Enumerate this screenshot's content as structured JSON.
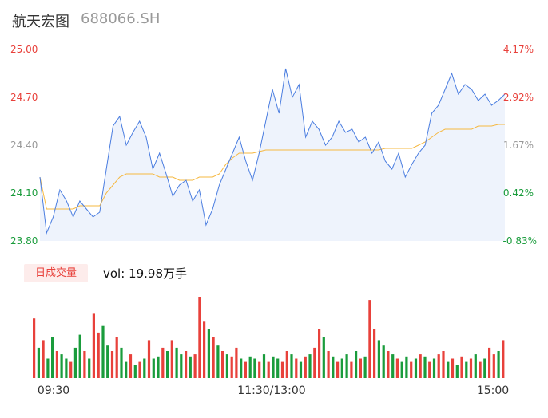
{
  "header": {
    "stock_name": "航天宏图",
    "stock_code": "688066.SH"
  },
  "volume_panel": {
    "badge_label": "日成交量",
    "vol_text": "vol: 19.98万手"
  },
  "colors": {
    "price_line": "#4a7de0",
    "avg_line": "#f5b841",
    "up": "#e8413b",
    "down": "#1a9c3c",
    "neutral_pct": "#999999",
    "area_fill": "#eef3fc"
  },
  "chart_data": {
    "type": "line",
    "title": "",
    "xlabel": "",
    "ylabel": "",
    "ylim": [
      23.8,
      25.0
    ],
    "price_ticks": [
      "25.00",
      "24.70",
      "24.40",
      "24.10",
      "23.80"
    ],
    "percent_ticks": [
      "4.17%",
      "2.92%",
      "1.67%",
      "0.42%",
      "-0.83%"
    ],
    "time_ticks": [
      "09:30",
      "11:30/13:00",
      "15:00"
    ],
    "series": [
      {
        "values": [
          24.2,
          23.85,
          23.95,
          24.12,
          24.05,
          23.95,
          24.05,
          24.0,
          23.95,
          23.98,
          24.25,
          24.52,
          24.58,
          24.4,
          24.48,
          24.55,
          24.45,
          24.25,
          24.35,
          24.22,
          24.08,
          24.15,
          24.18,
          24.05,
          24.12,
          23.9,
          24.0,
          24.15,
          24.25,
          24.35,
          24.45,
          24.3,
          24.18,
          24.35,
          24.55,
          24.75,
          24.6,
          24.88,
          24.7,
          24.78,
          24.45,
          24.55,
          24.5,
          24.4,
          24.45,
          24.55,
          24.48,
          24.5,
          24.42,
          24.45,
          24.35,
          24.42,
          24.3,
          24.25,
          24.35,
          24.2,
          24.28,
          24.35,
          24.4,
          24.6,
          24.65,
          24.75,
          24.85,
          24.72,
          24.78,
          24.75,
          24.68,
          24.72,
          24.65,
          24.68,
          24.72
        ]
      },
      {
        "values": [
          24.2,
          24.0,
          24.0,
          24.0,
          24.0,
          24.0,
          24.02,
          24.02,
          24.02,
          24.02,
          24.1,
          24.15,
          24.2,
          24.22,
          24.22,
          24.22,
          24.22,
          24.22,
          24.2,
          24.2,
          24.2,
          24.18,
          24.18,
          24.18,
          24.2,
          24.2,
          24.2,
          24.22,
          24.28,
          24.32,
          24.35,
          24.35,
          24.35,
          24.36,
          24.37,
          24.37,
          24.37,
          24.37,
          24.37,
          24.37,
          24.37,
          24.37,
          24.37,
          24.37,
          24.37,
          24.37,
          24.37,
          24.37,
          24.37,
          24.37,
          24.37,
          24.37,
          24.38,
          24.38,
          24.38,
          24.38,
          24.38,
          24.4,
          24.42,
          24.45,
          24.48,
          24.5,
          24.5,
          24.5,
          24.5,
          24.5,
          24.52,
          24.52,
          24.52,
          24.53,
          24.53
        ]
      }
    ],
    "volume_values": [
      55,
      28,
      35,
      18,
      38,
      25,
      22,
      18,
      15,
      28,
      40,
      25,
      18,
      60,
      42,
      48,
      30,
      25,
      38,
      28,
      15,
      22,
      12,
      15,
      18,
      35,
      18,
      20,
      28,
      25,
      35,
      28,
      22,
      25,
      20,
      22,
      75,
      52,
      45,
      38,
      30,
      25,
      22,
      20,
      28,
      18,
      15,
      20,
      18,
      15,
      22,
      15,
      20,
      18,
      15,
      25,
      22,
      18,
      15,
      20,
      22,
      28,
      45,
      38,
      25,
      20,
      15,
      18,
      22,
      15,
      25,
      18,
      20,
      72,
      45,
      35,
      30,
      25,
      22,
      18,
      15,
      20,
      15,
      18,
      22,
      20,
      15,
      18,
      22,
      25,
      15,
      18,
      12,
      20,
      15,
      18,
      22,
      15,
      18,
      28,
      22,
      25,
      35
    ],
    "volume_up": [
      true,
      false,
      true,
      false,
      false,
      true,
      false,
      false,
      true,
      false,
      false,
      true,
      false,
      true,
      true,
      false,
      false,
      true,
      true,
      false,
      false,
      true,
      false,
      true,
      false,
      true,
      false,
      false,
      true,
      false,
      true,
      false,
      false,
      true,
      false,
      true,
      true,
      true,
      false,
      true,
      false,
      true,
      false,
      true,
      true,
      false,
      true,
      false,
      false,
      true,
      false,
      true,
      false,
      false,
      true,
      true,
      false,
      true,
      false,
      true,
      false,
      true,
      true,
      false,
      true,
      false,
      true,
      false,
      false,
      true,
      false,
      true,
      false,
      true,
      true,
      false,
      false,
      true,
      false,
      true,
      false,
      false,
      true,
      false,
      true,
      false,
      true,
      false,
      true,
      true,
      false,
      true,
      false,
      true,
      false,
      true,
      false,
      true,
      false,
      true,
      true,
      false,
      true
    ]
  }
}
